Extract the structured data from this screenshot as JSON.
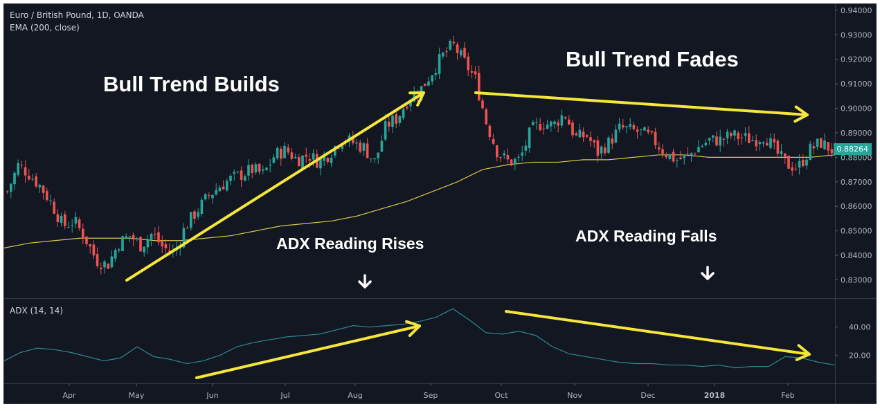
{
  "chart_data": {
    "type": "candlestick",
    "title": "Euro / British Pound, 1D, OANDA",
    "indicator_label": "EMA (200, close)",
    "adx_label": "ADX (14, 14)",
    "x_ticks": [
      "Apr",
      "May",
      "Jun",
      "Jul",
      "Aug",
      "Sep",
      "Oct",
      "Nov",
      "Dec",
      "2018",
      "Feb"
    ],
    "y_ticks": [
      "0.94000",
      "0.93000",
      "0.92000",
      "0.91000",
      "0.90000",
      "0.89000",
      "0.88000",
      "0.87000",
      "0.86000",
      "0.85000",
      "0.84000",
      "0.83000"
    ],
    "ylim": [
      0.8225,
      0.9425
    ],
    "last_price": "0.88264",
    "adx_ticks": [
      "40.00",
      "20.00"
    ],
    "adx_ylim": [
      0,
      60
    ],
    "price_series": [
      0.866,
      0.877,
      0.873,
      0.868,
      0.861,
      0.852,
      0.854,
      0.847,
      0.838,
      0.836,
      0.845,
      0.848,
      0.844,
      0.849,
      0.843,
      0.841,
      0.852,
      0.858,
      0.864,
      0.868,
      0.871,
      0.873,
      0.875,
      0.873,
      0.881,
      0.883,
      0.879,
      0.881,
      0.878,
      0.882,
      0.888,
      0.886,
      0.884,
      0.878,
      0.893,
      0.896,
      0.904,
      0.907,
      0.914,
      0.921,
      0.926,
      0.919,
      0.912,
      0.894,
      0.882,
      0.878,
      0.879,
      0.891,
      0.894,
      0.893,
      0.898,
      0.888,
      0.889,
      0.882,
      0.886,
      0.892,
      0.891,
      0.89,
      0.887,
      0.882,
      0.879,
      0.88,
      0.884,
      0.887,
      0.887,
      0.889,
      0.888,
      0.887,
      0.889,
      0.882,
      0.877,
      0.876,
      0.883,
      0.886,
      0.883
    ],
    "ema_series": [
      0.843,
      0.845,
      0.846,
      0.847,
      0.847,
      0.847,
      0.846,
      0.846,
      0.847,
      0.848,
      0.85,
      0.852,
      0.853,
      0.854,
      0.856,
      0.859,
      0.862,
      0.866,
      0.87,
      0.875,
      0.877,
      0.878,
      0.878,
      0.879,
      0.879,
      0.88,
      0.881,
      0.881,
      0.88,
      0.88,
      0.88,
      0.88,
      0.88,
      0.881
    ],
    "adx_series": [
      16,
      22,
      25,
      24,
      22,
      19,
      16,
      18,
      26,
      19,
      17,
      14,
      16,
      20,
      26,
      29,
      31,
      33,
      34,
      35,
      38,
      41,
      40,
      41,
      42,
      44,
      47,
      53,
      45,
      36,
      35,
      37,
      34,
      26,
      21,
      19,
      17,
      15,
      14,
      14,
      13,
      13,
      12,
      13,
      11,
      12,
      12,
      19,
      18,
      15,
      13
    ]
  },
  "annotations": {
    "bull_builds": "Bull Trend Builds",
    "bull_fades": "Bull Trend Fades",
    "adx_rises": "ADX Reading Rises",
    "adx_falls": "ADX Reading Falls"
  },
  "colors": {
    "background": "#131722",
    "up": "#26a69a",
    "down": "#ef5350",
    "ema": "#d8c84a",
    "adx": "#2a8a92",
    "arrow": "#f5e63a"
  }
}
